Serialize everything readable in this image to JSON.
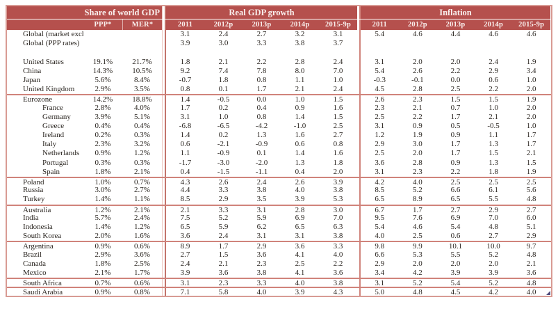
{
  "colors": {
    "header_bg": "#b5504d",
    "header_text": "#f9efed",
    "outer_border": "#d89b94",
    "rule": "#d0837b",
    "divider_strong": "#c3746b",
    "divider_light": "#ecc6c0",
    "text": "#2a2520",
    "artifact": "#514d7e"
  },
  "chart_data": {
    "type": "table",
    "header": {
      "share_group": {
        "label": "Share of world GDP",
        "cols": [
          "PPP*",
          "MER*"
        ]
      },
      "gdp_group": {
        "label": "Real GDP growth",
        "cols": [
          "2011",
          "2012p",
          "2013p",
          "2014p",
          "2015-9p"
        ]
      },
      "inflation_group": {
        "label": "Inflation",
        "cols": [
          "2011",
          "2012p",
          "2013p",
          "2014p",
          "2015-9p"
        ]
      }
    },
    "rows": [
      {
        "name": "Global (market exchange rates)",
        "ppp": "",
        "mer": "",
        "gdp": [
          "3.1",
          "2.4",
          "2.7",
          "3.2",
          "3.1"
        ],
        "inflation": [
          "5.4",
          "4.6",
          "4.4",
          "4.6",
          "4.6"
        ]
      },
      {
        "name": "Global (PPP rates)",
        "ppp": "",
        "mer": "",
        "gdp": [
          "3.9",
          "3.0",
          "3.3",
          "3.8",
          "3.7"
        ],
        "inflation": [
          "",
          "",
          "",
          "",
          ""
        ]
      },
      {
        "spacer": true,
        "name": "",
        "ppp": "",
        "mer": "",
        "gdp": [
          "",
          "",
          "",
          "",
          ""
        ],
        "inflation": [
          "",
          "",
          "",
          "",
          ""
        ]
      },
      {
        "name": "United States",
        "ppp": "19.1%",
        "mer": "21.7%",
        "gdp": [
          "1.8",
          "2.1",
          "2.2",
          "2.8",
          "2.4"
        ],
        "inflation": [
          "3.1",
          "2.0",
          "2.0",
          "2.4",
          "1.9"
        ]
      },
      {
        "name": "China",
        "ppp": "14.3%",
        "mer": "10.5%",
        "gdp": [
          "9.2",
          "7.4",
          "7.8",
          "8.0",
          "7.0"
        ],
        "inflation": [
          "5.4",
          "2.6",
          "2.2",
          "2.9",
          "3.4"
        ]
      },
      {
        "name": "Japan",
        "ppp": "5.6%",
        "mer": "8.4%",
        "gdp": [
          "-0.7",
          "1.8",
          "0.8",
          "1.1",
          "1.0"
        ],
        "inflation": [
          "-0.3",
          "-0.1",
          "0.0",
          "0.6",
          "1.0"
        ]
      },
      {
        "name": "United Kingdom",
        "ppp": "2.9%",
        "mer": "3.5%",
        "gdp": [
          "0.8",
          "0.1",
          "1.7",
          "2.1",
          "2.4"
        ],
        "inflation": [
          "4.5",
          "2.8",
          "2.5",
          "2.2",
          "2.0"
        ]
      },
      {
        "name": "Eurozone",
        "rule_above": true,
        "ppp": "14.2%",
        "mer": "18.8%",
        "gdp": [
          "1.4",
          "-0.5",
          "0.0",
          "1.0",
          "1.5"
        ],
        "inflation": [
          "2.6",
          "2.3",
          "1.5",
          "1.5",
          "1.9"
        ]
      },
      {
        "name": "France",
        "indent": true,
        "ppp": "2.8%",
        "mer": "4.0%",
        "gdp": [
          "1.7",
          "0.2",
          "0.4",
          "0.9",
          "1.6"
        ],
        "inflation": [
          "2.3",
          "2.1",
          "0.7",
          "1.0",
          "2.0"
        ]
      },
      {
        "name": "Germany",
        "indent": true,
        "ppp": "3.9%",
        "mer": "5.1%",
        "gdp": [
          "3.1",
          "1.0",
          "0.8",
          "1.4",
          "1.5"
        ],
        "inflation": [
          "2.5",
          "2.2",
          "1.7",
          "2.1",
          "2.0"
        ]
      },
      {
        "name": "Greece",
        "indent": true,
        "ppp": "0.4%",
        "mer": "0.4%",
        "gdp": [
          "-6.8",
          "-6.5",
          "-4.2",
          "-1.0",
          "2.5"
        ],
        "inflation": [
          "3.1",
          "0.9",
          "0.5",
          "-0.5",
          "1.0"
        ]
      },
      {
        "name": "Ireland",
        "indent": true,
        "ppp": "0.2%",
        "mer": "0.3%",
        "gdp": [
          "1.4",
          "0.2",
          "1.3",
          "1.6",
          "2.7"
        ],
        "inflation": [
          "1.2",
          "1.9",
          "0.9",
          "1.1",
          "1.7"
        ]
      },
      {
        "name": "Italy",
        "indent": true,
        "ppp": "2.3%",
        "mer": "3.2%",
        "gdp": [
          "0.6",
          "-2.1",
          "-0.9",
          "0.6",
          "0.8"
        ],
        "inflation": [
          "2.9",
          "3.0",
          "1.7",
          "1.3",
          "1.7"
        ]
      },
      {
        "name": "Netherlands",
        "indent": true,
        "ppp": "0.9%",
        "mer": "1.2%",
        "gdp": [
          "1.1",
          "-0.9",
          "0.1",
          "1.4",
          "1.6"
        ],
        "inflation": [
          "2.5",
          "2.0",
          "1.7",
          "1.5",
          "2.1"
        ]
      },
      {
        "name": "Portugal",
        "indent": true,
        "ppp": "0.3%",
        "mer": "0.3%",
        "gdp": [
          "-1.7",
          "-3.0",
          "-2.0",
          "1.3",
          "1.8"
        ],
        "inflation": [
          "3.6",
          "2.8",
          "0.9",
          "1.3",
          "1.5"
        ]
      },
      {
        "name": "Spain",
        "indent": true,
        "ppp": "1.8%",
        "mer": "2.1%",
        "gdp": [
          "0.4",
          "-1.5",
          "-1.1",
          "0.4",
          "2.0"
        ],
        "inflation": [
          "3.1",
          "2.3",
          "2.2",
          "1.8",
          "1.9"
        ]
      },
      {
        "name": "Poland",
        "rule_above": true,
        "ppp": "1.0%",
        "mer": "0.7%",
        "gdp": [
          "4.3",
          "2.6",
          "2.4",
          "2.6",
          "3.9"
        ],
        "inflation": [
          "4.2",
          "4.0",
          "2.5",
          "2.5",
          "2.5"
        ]
      },
      {
        "name": "Russia",
        "ppp": "3.0%",
        "mer": "2.7%",
        "gdp": [
          "4.4",
          "3.3",
          "3.8",
          "4.0",
          "3.8"
        ],
        "inflation": [
          "8.5",
          "5.2",
          "6.6",
          "6.1",
          "5.6"
        ]
      },
      {
        "name": "Turkey",
        "ppp": "1.4%",
        "mer": "1.1%",
        "gdp": [
          "8.5",
          "2.9",
          "3.5",
          "3.9",
          "5.3"
        ],
        "inflation": [
          "6.5",
          "8.9",
          "6.5",
          "5.5",
          "4.8"
        ]
      },
      {
        "name": "Australia",
        "rule_above": true,
        "ppp": "1.2%",
        "mer": "2.1%",
        "gdp": [
          "2.1",
          "3.3",
          "3.1",
          "2.8",
          "3.0"
        ],
        "inflation": [
          "6.7",
          "1.7",
          "2.7",
          "2.9",
          "2.7"
        ]
      },
      {
        "name": "India",
        "ppp": "5.7%",
        "mer": "2.4%",
        "gdp": [
          "7.5",
          "5.2",
          "5.9",
          "6.9",
          "7.0"
        ],
        "inflation": [
          "9.5",
          "7.6",
          "6.9",
          "7.0",
          "6.0"
        ]
      },
      {
        "name": "Indonesia",
        "ppp": "1.4%",
        "mer": "1.2%",
        "gdp": [
          "6.5",
          "5.9",
          "6.2",
          "6.5",
          "6.3"
        ],
        "inflation": [
          "5.4",
          "4.6",
          "5.4",
          "4.8",
          "5.1"
        ]
      },
      {
        "name": "South Korea",
        "ppp": "2.0%",
        "mer": "1.6%",
        "gdp": [
          "3.6",
          "2.4",
          "3.1",
          "3.1",
          "3.8"
        ],
        "inflation": [
          "4.0",
          "2.5",
          "0.6",
          "2.7",
          "2.9"
        ]
      },
      {
        "name": "Argentina",
        "rule_above": true,
        "ppp": "0.9%",
        "mer": "0.6%",
        "gdp": [
          "8.9",
          "1.7",
          "2.9",
          "3.6",
          "3.3"
        ],
        "inflation": [
          "9.8",
          "9.9",
          "10.1",
          "10.0",
          "9.7"
        ]
      },
      {
        "name": "Brazil",
        "ppp": "2.9%",
        "mer": "3.6%",
        "gdp": [
          "2.7",
          "1.5",
          "3.6",
          "4.1",
          "4.0"
        ],
        "inflation": [
          "6.6",
          "5.3",
          "5.5",
          "5.2",
          "4.8"
        ]
      },
      {
        "name": "Canada",
        "ppp": "1.8%",
        "mer": "2.5%",
        "gdp": [
          "2.4",
          "2.1",
          "2.3",
          "2.5",
          "2.2"
        ],
        "inflation": [
          "2.9",
          "2.0",
          "2.0",
          "2.0",
          "2.1"
        ]
      },
      {
        "name": "Mexico",
        "ppp": "2.1%",
        "mer": "1.7%",
        "gdp": [
          "3.9",
          "3.6",
          "3.8",
          "4.1",
          "3.6"
        ],
        "inflation": [
          "3.4",
          "4.2",
          "3.9",
          "3.9",
          "3.6"
        ]
      },
      {
        "name": "South Africa",
        "rule_above": true,
        "ppp": "0.7%",
        "mer": "0.6%",
        "gdp": [
          "3.1",
          "2.3",
          "3.3",
          "4.0",
          "3.8"
        ],
        "inflation": [
          "3.1",
          "5.2",
          "5.4",
          "5.2",
          "4.8"
        ]
      },
      {
        "name": "Saudi Arabia",
        "rule_above": true,
        "ppp": "0.9%",
        "mer": "0.8%",
        "gdp": [
          "7.1",
          "5.8",
          "4.0",
          "3.9",
          "4.3"
        ],
        "inflation": [
          "5.0",
          "4.8",
          "4.5",
          "4.2",
          "4.0"
        ]
      }
    ]
  }
}
